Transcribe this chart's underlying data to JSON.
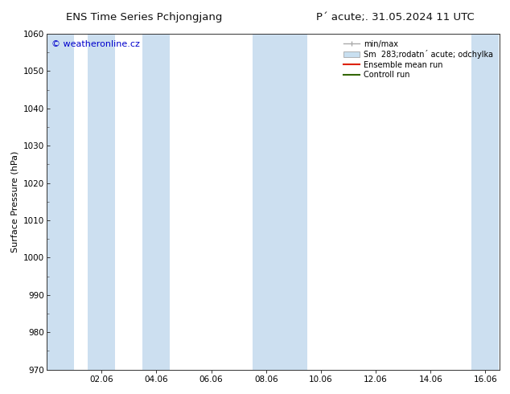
{
  "title_left": "ENS Time Series Pchjongjang",
  "title_right": "P´ acute;. 31.05.2024 11 UTC",
  "ylabel": "Surface Pressure (hPa)",
  "ylim": [
    970,
    1060
  ],
  "yticks": [
    970,
    980,
    990,
    1000,
    1010,
    1020,
    1030,
    1040,
    1050,
    1060
  ],
  "xlim_start": 0.0,
  "xlim_end": 16.5,
  "xtick_positions": [
    2,
    4,
    6,
    8,
    10,
    12,
    14,
    16
  ],
  "xtick_labels": [
    "02.06",
    "04.06",
    "06.06",
    "08.06",
    "10.06",
    "12.06",
    "14.06",
    "16.06"
  ],
  "blue_band_color": "#ccdff0",
  "blue_band_lighter": "#ddeef8",
  "band_pairs": [
    [
      0.0,
      0.5,
      true
    ],
    [
      1.5,
      2.5,
      true
    ],
    [
      3.5,
      4.5,
      false
    ],
    [
      7.5,
      9.0,
      true
    ],
    [
      9.0,
      9.5,
      false
    ],
    [
      15.5,
      16.5,
      true
    ]
  ],
  "watermark_text": "© weatheronline.cz",
  "watermark_color": "#0000cc",
  "legend_labels": [
    "min/max",
    "Sm  283;rodatn´ acute; odchylka",
    "Ensemble mean run",
    "Controll run"
  ],
  "legend_colors": [
    "#999999",
    "#c8dff0",
    "#dd2200",
    "#336600"
  ],
  "background_color": "#ffffff",
  "plot_bg_color": "#ffffff",
  "font_size_title": 9.5,
  "font_size_axis": 8,
  "font_size_tick": 7.5,
  "font_size_legend": 7,
  "font_size_watermark": 8
}
